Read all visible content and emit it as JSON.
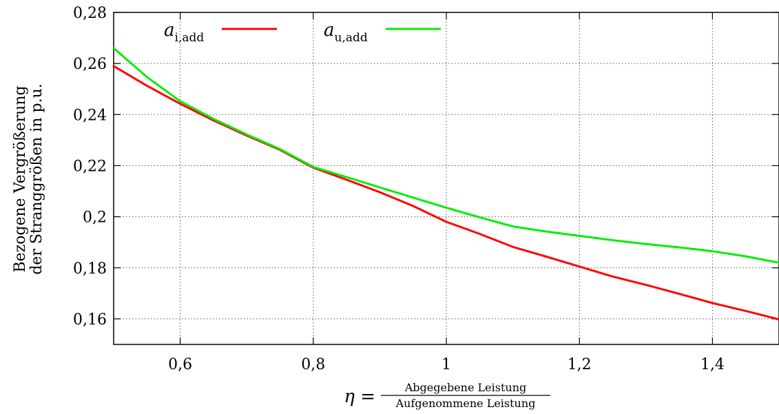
{
  "chart_data": {
    "type": "line",
    "xlim": [
      0.5,
      1.5
    ],
    "ylim": [
      0.15,
      0.28
    ],
    "x_ticks": [
      0.6,
      0.8,
      1.0,
      1.2,
      1.4
    ],
    "x_tick_labels": [
      "0,6",
      "0,8",
      "1",
      "1,2",
      "1,4"
    ],
    "y_ticks": [
      0.16,
      0.18,
      0.2,
      0.22,
      0.24,
      0.26,
      0.28
    ],
    "y_tick_labels": [
      "0,16",
      "0,18",
      "0,2",
      "0,22",
      "0,24",
      "0,26",
      "0,28"
    ],
    "grid": true,
    "legend_position": "top",
    "ylabel_line1": "Bezogene Vergrößerung",
    "ylabel_line2": "der Stranggrößen in p.u.",
    "xlabel_symbol": "η =",
    "xlabel_numerator": "Abgegebene Leistung",
    "xlabel_denominator": "Aufgenommene Leistung",
    "x": [
      0.5,
      0.55,
      0.6,
      0.65,
      0.7,
      0.75,
      0.8,
      0.85,
      0.9,
      0.95,
      1.0,
      1.05,
      1.1,
      1.15,
      1.2,
      1.25,
      1.3,
      1.35,
      1.4,
      1.45,
      1.5
    ],
    "series": [
      {
        "name": "a",
        "subscript": "i,add",
        "color": "#ff0000",
        "values": [
          0.259,
          0.2513,
          0.2442,
          0.2377,
          0.2318,
          0.2262,
          0.2192,
          0.2145,
          0.2096,
          0.2042,
          0.198,
          0.1933,
          0.1882,
          0.1844,
          0.1805,
          0.1766,
          0.1733,
          0.1698,
          0.1662,
          0.1631,
          0.1598
        ]
      },
      {
        "name": "a",
        "subscript": "u,add",
        "color": "#00ee00",
        "values": [
          0.266,
          0.2547,
          0.2452,
          0.2383,
          0.2322,
          0.2265,
          0.2195,
          0.2155,
          0.2115,
          0.2075,
          0.2035,
          0.1998,
          0.1962,
          0.1942,
          0.1925,
          0.1908,
          0.1893,
          0.188,
          0.1865,
          0.1845,
          0.182
        ]
      }
    ]
  }
}
